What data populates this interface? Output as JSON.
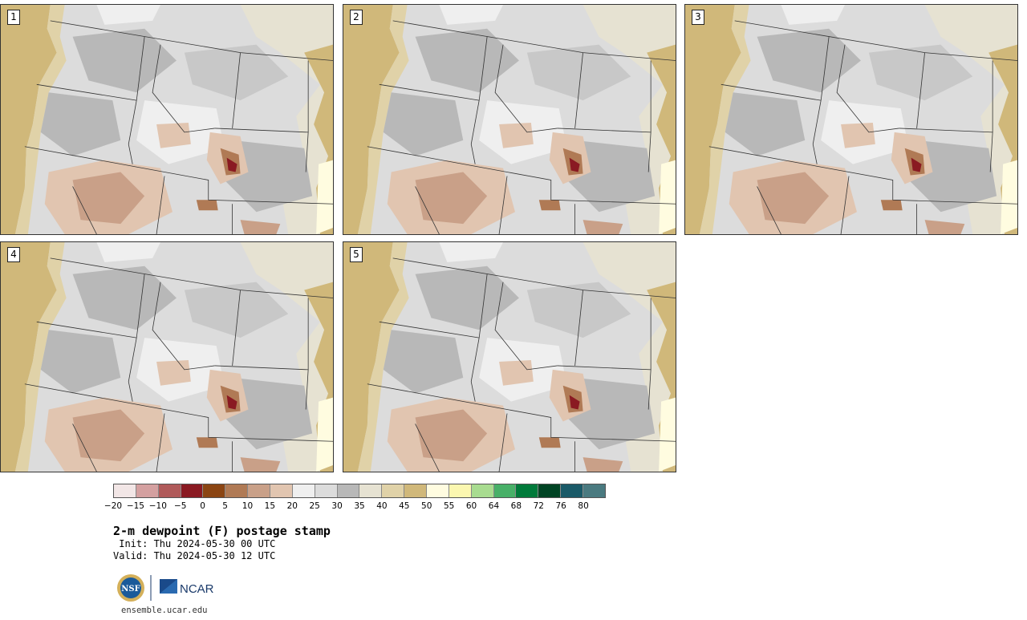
{
  "panels": [
    {
      "label": "1"
    },
    {
      "label": "2"
    },
    {
      "label": "3"
    },
    {
      "label": "4"
    },
    {
      "label": "5"
    }
  ],
  "legend": {
    "colors": [
      "#f2e6e6",
      "#d4a0a0",
      "#b05a5a",
      "#8a1a22",
      "#8b4513",
      "#b07a55",
      "#c9a088",
      "#e1c5b0",
      "#efefef",
      "#dcdcdc",
      "#b8b8b8",
      "#e6e2d2",
      "#e0d2a8",
      "#d0b87a",
      "#fffce0",
      "#fbf7b0",
      "#a8dc90",
      "#48b068",
      "#007a3a",
      "#004424",
      "#1a5a68",
      "#4a7a80"
    ],
    "ticks": [
      "−20",
      "−15",
      "−10",
      "−5",
      "0",
      "5",
      "10",
      "15",
      "20",
      "25",
      "30",
      "35",
      "40",
      "45",
      "50",
      "55",
      "60",
      "64",
      "68",
      "72",
      "76",
      "80"
    ]
  },
  "title": "2-m dewpoint (F) postage stamp",
  "init": " Init: Thu 2024-05-30 00 UTC",
  "valid": "Valid: Thu 2024-05-30 12 UTC",
  "logos": {
    "nsf": "NSF",
    "ncar": "NCAR"
  },
  "footer": "ensemble.ucar.edu"
}
